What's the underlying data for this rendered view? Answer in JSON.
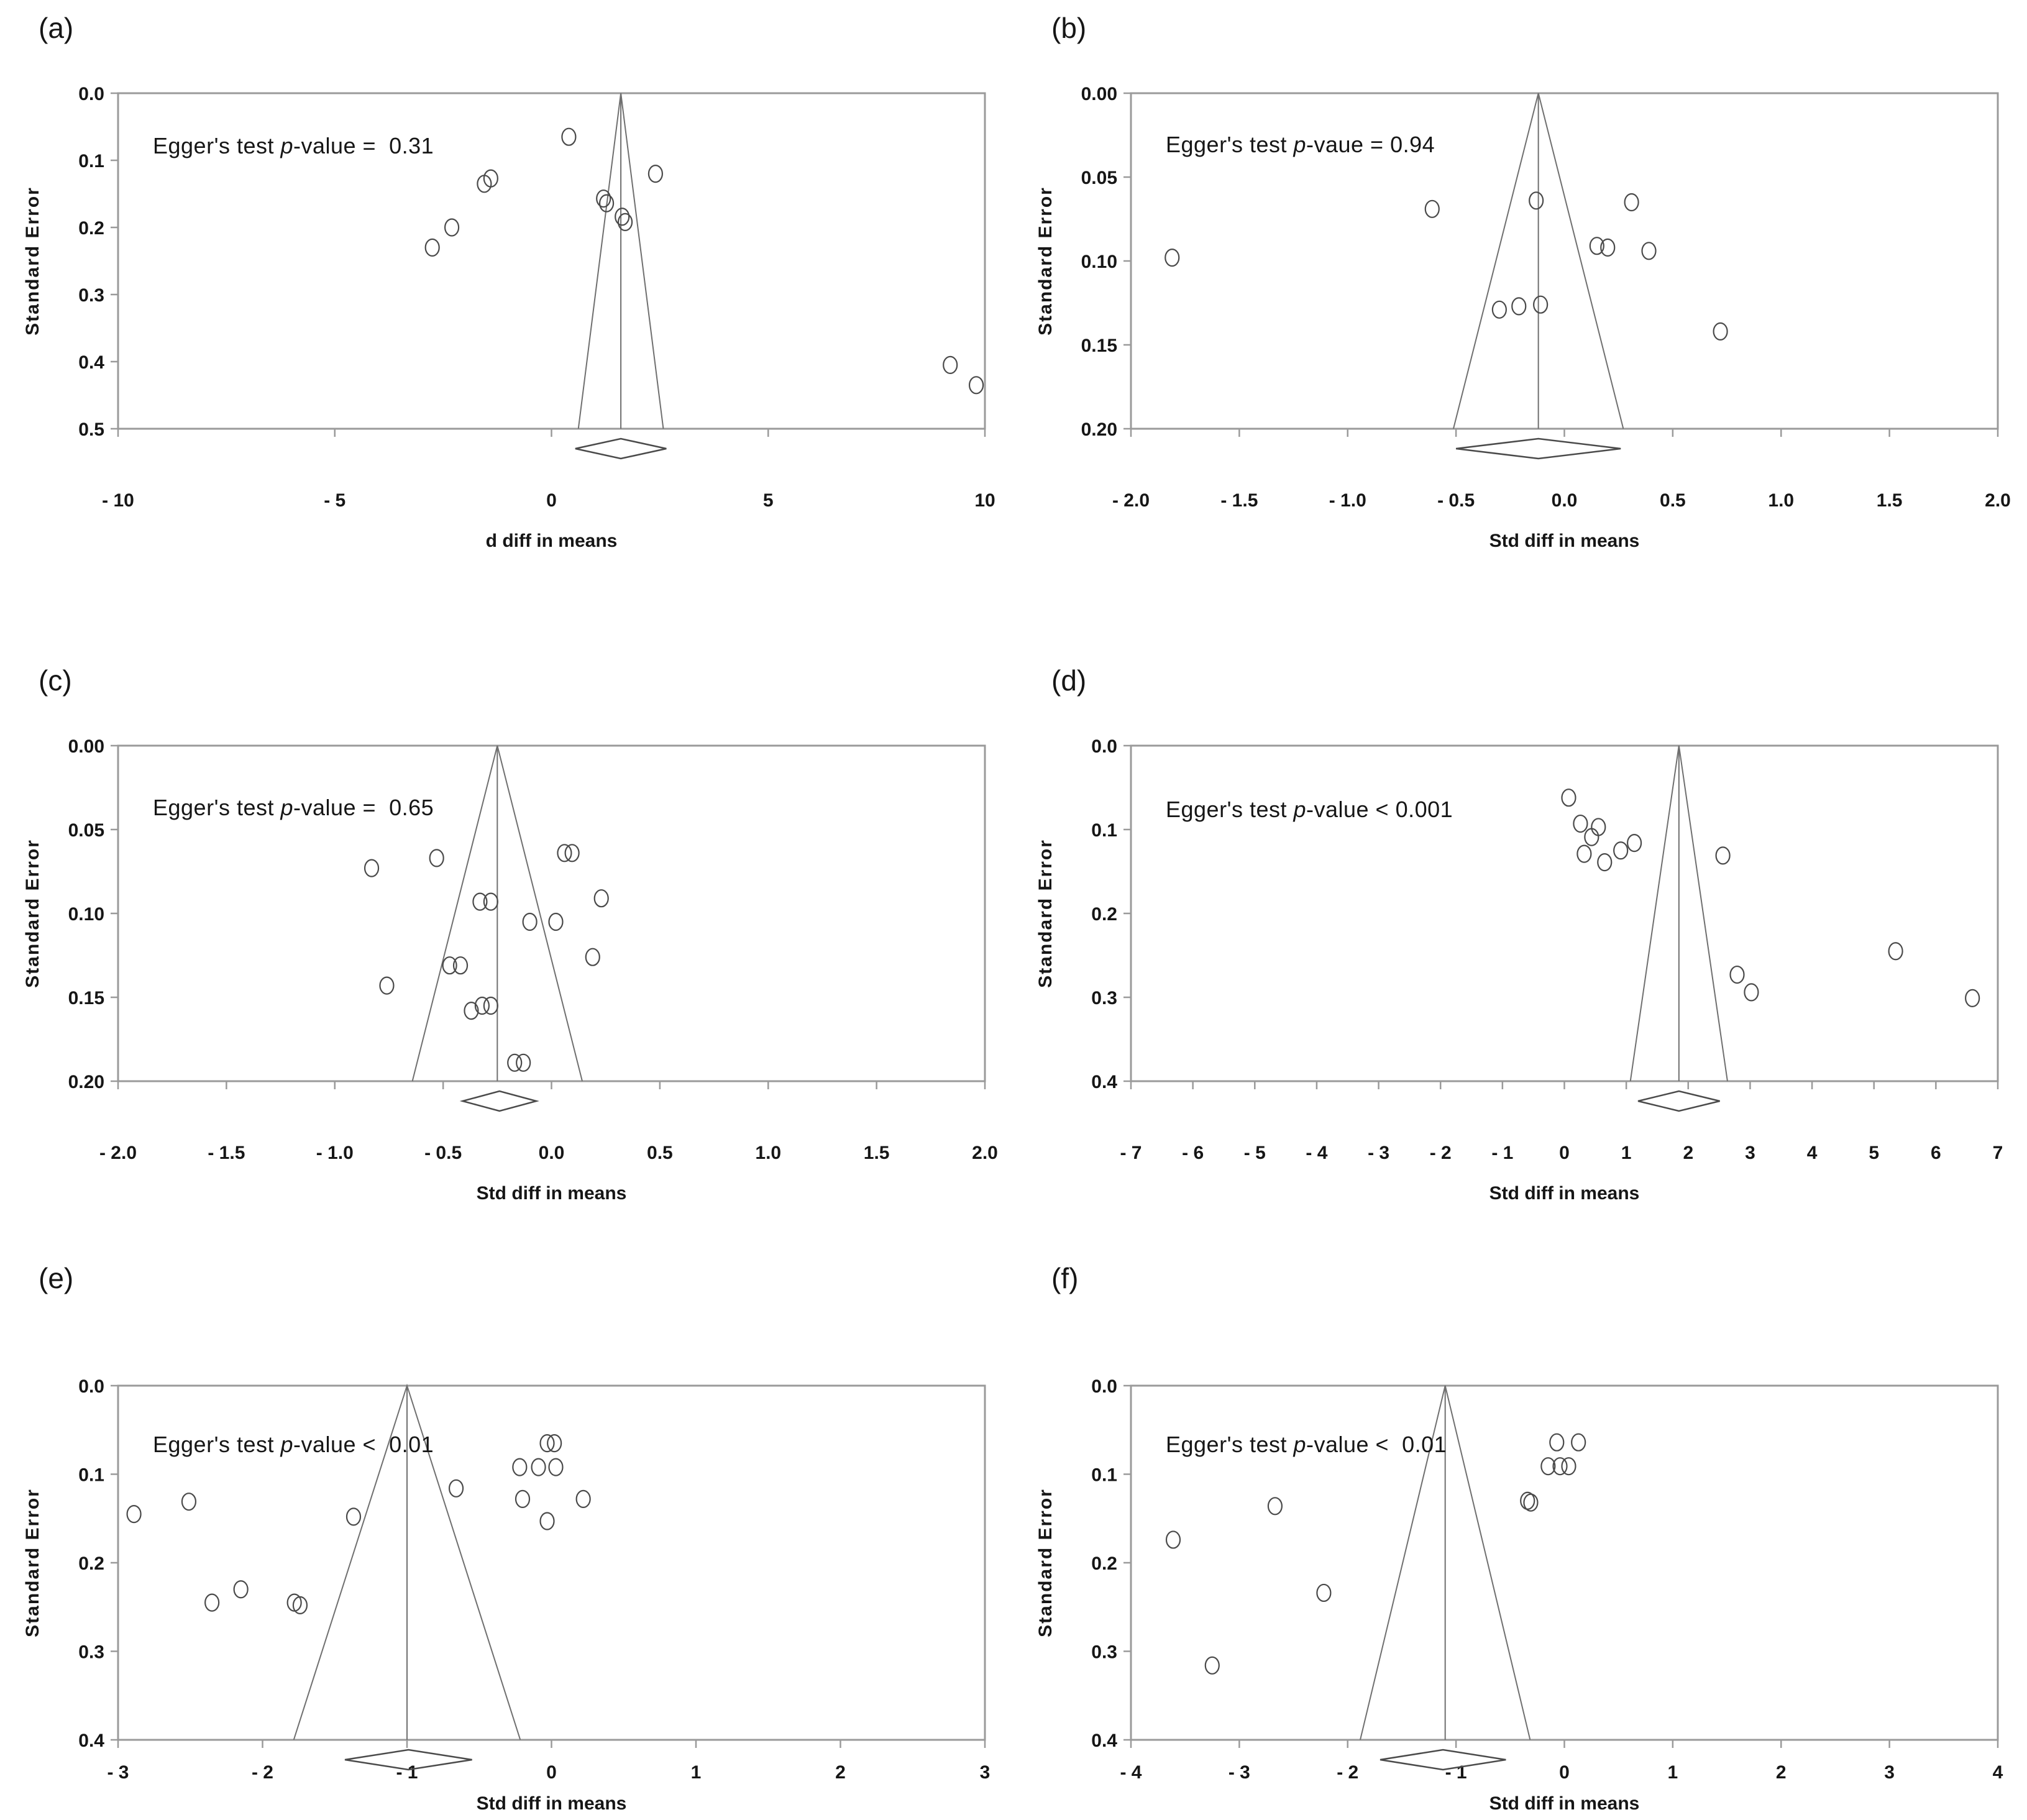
{
  "figure": {
    "background": "#ffffff",
    "frame_color": "#9a9a9a",
    "funnel_color": "#6f6f6f",
    "point_color": "#4a4a4a",
    "text_color": "#161616"
  },
  "chart_data": [
    {
      "type": "scatter",
      "panel_label": "(a)",
      "egger": {
        "prefix": "Egger's test ",
        "p": "p",
        "suffix": "-value =  0.31"
      },
      "xlabel": "d diff in means",
      "ylabel": "Standard Error",
      "xlim": [
        -10,
        10
      ],
      "ylim": [
        0,
        0.5
      ],
      "xticks": [
        {
          "v": -10,
          "label": "- 10"
        },
        {
          "v": -5,
          "label": "- 5"
        },
        {
          "v": 0,
          "label": "0"
        },
        {
          "v": 5,
          "label": "5"
        },
        {
          "v": 10,
          "label": "10"
        }
      ],
      "yticks": [
        {
          "v": 0.0,
          "label": "0.0"
        },
        {
          "v": 0.1,
          "label": "0.1"
        },
        {
          "v": 0.2,
          "label": "0.2"
        },
        {
          "v": 0.3,
          "label": "0.3"
        },
        {
          "v": 0.4,
          "label": "0.4"
        },
        {
          "v": 0.5,
          "label": "0.5"
        }
      ],
      "funnel": {
        "center": 1.6,
        "z": 1.96
      },
      "diamond": {
        "center": 1.6,
        "half_width": 1.05
      },
      "points": [
        [
          0.4,
          0.065
        ],
        [
          2.4,
          0.12
        ],
        [
          -1.4,
          0.127
        ],
        [
          -1.55,
          0.135
        ],
        [
          1.2,
          0.157
        ],
        [
          1.27,
          0.164
        ],
        [
          1.63,
          0.184
        ],
        [
          1.7,
          0.192
        ],
        [
          -2.3,
          0.2
        ],
        [
          -2.75,
          0.23
        ],
        [
          9.2,
          0.405
        ],
        [
          9.8,
          0.435
        ]
      ]
    },
    {
      "type": "scatter",
      "panel_label": "(b)",
      "egger": {
        "prefix": "Egger's test ",
        "p": "p",
        "suffix": "-vaue = 0.94"
      },
      "xlabel": "Std diff in means",
      "ylabel": "Standard Error",
      "xlim": [
        -2,
        2
      ],
      "ylim": [
        0,
        0.2
      ],
      "xticks": [
        {
          "v": -2.0,
          "label": "- 2.0"
        },
        {
          "v": -1.5,
          "label": "- 1.5"
        },
        {
          "v": -1.0,
          "label": "- 1.0"
        },
        {
          "v": -0.5,
          "label": "- 0.5"
        },
        {
          "v": 0.0,
          "label": "0.0"
        },
        {
          "v": 0.5,
          "label": "0.5"
        },
        {
          "v": 1.0,
          "label": "1.0"
        },
        {
          "v": 1.5,
          "label": "1.5"
        },
        {
          "v": 2.0,
          "label": "2.0"
        }
      ],
      "yticks": [
        {
          "v": 0.0,
          "label": "0.00"
        },
        {
          "v": 0.05,
          "label": "0.05"
        },
        {
          "v": 0.1,
          "label": "0.10"
        },
        {
          "v": 0.15,
          "label": "0.15"
        },
        {
          "v": 0.2,
          "label": "0.20"
        }
      ],
      "funnel": {
        "center": -0.12,
        "z": 1.96
      },
      "diamond": {
        "center": -0.12,
        "half_width": 0.38
      },
      "points": [
        [
          -0.13,
          0.064
        ],
        [
          0.31,
          0.065
        ],
        [
          -0.61,
          0.069
        ],
        [
          0.15,
          0.091
        ],
        [
          0.2,
          0.092
        ],
        [
          0.39,
          0.094
        ],
        [
          -1.81,
          0.098
        ],
        [
          -0.11,
          0.126
        ],
        [
          -0.21,
          0.127
        ],
        [
          -0.3,
          0.129
        ],
        [
          0.72,
          0.142
        ]
      ]
    },
    {
      "type": "scatter",
      "panel_label": "(c)",
      "egger": {
        "prefix": "Egger's test ",
        "p": "p",
        "suffix": "-value =  0.65"
      },
      "xlabel": "Std diff in means",
      "ylabel": "Standard Error",
      "xlim": [
        -2,
        2
      ],
      "ylim": [
        0,
        0.2
      ],
      "xticks": [
        {
          "v": -2.0,
          "label": "- 2.0"
        },
        {
          "v": -1.5,
          "label": "- 1.5"
        },
        {
          "v": -1.0,
          "label": "- 1.0"
        },
        {
          "v": -0.5,
          "label": "- 0.5"
        },
        {
          "v": 0.0,
          "label": "0.0"
        },
        {
          "v": 0.5,
          "label": "0.5"
        },
        {
          "v": 1.0,
          "label": "1.0"
        },
        {
          "v": 1.5,
          "label": "1.5"
        },
        {
          "v": 2.0,
          "label": "2.0"
        }
      ],
      "yticks": [
        {
          "v": 0.0,
          "label": "0.00"
        },
        {
          "v": 0.05,
          "label": "0.05"
        },
        {
          "v": 0.1,
          "label": "0.10"
        },
        {
          "v": 0.15,
          "label": "0.15"
        },
        {
          "v": 0.2,
          "label": "0.20"
        }
      ],
      "funnel": {
        "center": -0.25,
        "z": 1.96
      },
      "diamond": {
        "center": -0.24,
        "half_width": 0.17
      },
      "points": [
        [
          0.06,
          0.064
        ],
        [
          0.095,
          0.064
        ],
        [
          -0.53,
          0.067
        ],
        [
          -0.83,
          0.073
        ],
        [
          0.23,
          0.091
        ],
        [
          -0.33,
          0.093
        ],
        [
          -0.28,
          0.093
        ],
        [
          -0.1,
          0.105
        ],
        [
          0.02,
          0.105
        ],
        [
          0.19,
          0.126
        ],
        [
          -0.47,
          0.131
        ],
        [
          -0.42,
          0.131
        ],
        [
          -0.76,
          0.143
        ],
        [
          -0.32,
          0.155
        ],
        [
          -0.28,
          0.155
        ],
        [
          -0.37,
          0.158
        ],
        [
          -0.17,
          0.189
        ],
        [
          -0.13,
          0.189
        ]
      ]
    },
    {
      "type": "scatter",
      "panel_label": "(d)",
      "egger": {
        "prefix": "Egger's test ",
        "p": "p",
        "suffix": "-value < 0.001"
      },
      "xlabel": "Std diff in means",
      "ylabel": "Standard Error",
      "xlim": [
        -7,
        7
      ],
      "ylim": [
        0,
        0.4
      ],
      "xticks": [
        {
          "v": -7,
          "label": "- 7"
        },
        {
          "v": -6,
          "label": "- 6"
        },
        {
          "v": -5,
          "label": "- 5"
        },
        {
          "v": -4,
          "label": "- 4"
        },
        {
          "v": -3,
          "label": "- 3"
        },
        {
          "v": -2,
          "label": "- 2"
        },
        {
          "v": -1,
          "label": "- 1"
        },
        {
          "v": 0,
          "label": "0"
        },
        {
          "v": 1,
          "label": "1"
        },
        {
          "v": 2,
          "label": "2"
        },
        {
          "v": 3,
          "label": "3"
        },
        {
          "v": 4,
          "label": "4"
        },
        {
          "v": 5,
          "label": "5"
        },
        {
          "v": 6,
          "label": "6"
        },
        {
          "v": 7,
          "label": "7"
        }
      ],
      "yticks": [
        {
          "v": 0.0,
          "label": "0.0"
        },
        {
          "v": 0.1,
          "label": "0.1"
        },
        {
          "v": 0.2,
          "label": "0.2"
        },
        {
          "v": 0.3,
          "label": "0.3"
        },
        {
          "v": 0.4,
          "label": "0.4"
        }
      ],
      "funnel": {
        "center": 1.85,
        "z": 1.96
      },
      "diamond": {
        "center": 1.85,
        "half_width": 0.66
      },
      "points": [
        [
          0.07,
          0.062
        ],
        [
          0.26,
          0.093
        ],
        [
          0.55,
          0.097
        ],
        [
          0.44,
          0.109
        ],
        [
          1.13,
          0.116
        ],
        [
          0.91,
          0.125
        ],
        [
          0.32,
          0.129
        ],
        [
          2.56,
          0.131
        ],
        [
          0.65,
          0.139
        ],
        [
          5.35,
          0.245
        ],
        [
          2.79,
          0.273
        ],
        [
          3.02,
          0.294
        ],
        [
          6.59,
          0.301
        ]
      ]
    },
    {
      "type": "scatter",
      "panel_label": "(e)",
      "egger": {
        "prefix": "Egger's test ",
        "p": "p",
        "suffix": "-value <  0.01"
      },
      "xlabel": "Std diff in means",
      "ylabel": "Standard Error",
      "xlim": [
        -3,
        3
      ],
      "ylim": [
        0,
        0.4
      ],
      "xticks": [
        {
          "v": -3,
          "label": "- 3"
        },
        {
          "v": -2,
          "label": "- 2"
        },
        {
          "v": -1,
          "label": "- 1"
        },
        {
          "v": 0,
          "label": "0"
        },
        {
          "v": 1,
          "label": "1"
        },
        {
          "v": 2,
          "label": "2"
        },
        {
          "v": 3,
          "label": "3"
        }
      ],
      "yticks": [
        {
          "v": 0.0,
          "label": "0.0"
        },
        {
          "v": 0.1,
          "label": "0.1"
        },
        {
          "v": 0.2,
          "label": "0.2"
        },
        {
          "v": 0.3,
          "label": "0.3"
        },
        {
          "v": 0.4,
          "label": "0.4"
        }
      ],
      "funnel": {
        "center": -1.0,
        "z": 1.96
      },
      "diamond": {
        "center": -0.99,
        "half_width": 0.44
      },
      "points": [
        [
          -0.03,
          0.065
        ],
        [
          0.02,
          0.065
        ],
        [
          -0.22,
          0.092
        ],
        [
          -0.09,
          0.092
        ],
        [
          0.03,
          0.092
        ],
        [
          -0.66,
          0.116
        ],
        [
          -0.2,
          0.128
        ],
        [
          0.22,
          0.128
        ],
        [
          -2.51,
          0.131
        ],
        [
          -2.89,
          0.145
        ],
        [
          -1.37,
          0.148
        ],
        [
          -0.03,
          0.153
        ],
        [
          -2.15,
          0.23
        ],
        [
          -2.35,
          0.245
        ],
        [
          -1.78,
          0.245
        ],
        [
          -1.74,
          0.248
        ]
      ]
    },
    {
      "type": "scatter",
      "panel_label": "(f)",
      "egger": {
        "prefix": "Egger's test ",
        "p": "p",
        "suffix": "-value <  0.01"
      },
      "xlabel": "Std diff in means",
      "ylabel": "Standard Error",
      "xlim": [
        -4,
        4
      ],
      "ylim": [
        0,
        0.4
      ],
      "xticks": [
        {
          "v": -4,
          "label": "- 4"
        },
        {
          "v": -3,
          "label": "- 3"
        },
        {
          "v": -2,
          "label": "- 2"
        },
        {
          "v": -1,
          "label": "- 1"
        },
        {
          "v": 0,
          "label": "0"
        },
        {
          "v": 1,
          "label": "1"
        },
        {
          "v": 2,
          "label": "2"
        },
        {
          "v": 3,
          "label": "3"
        },
        {
          "v": 4,
          "label": "4"
        }
      ],
      "yticks": [
        {
          "v": 0.0,
          "label": "0.0"
        },
        {
          "v": 0.1,
          "label": "0.1"
        },
        {
          "v": 0.2,
          "label": "0.2"
        },
        {
          "v": 0.3,
          "label": "0.3"
        },
        {
          "v": 0.4,
          "label": "0.4"
        }
      ],
      "funnel": {
        "center": -1.1,
        "z": 1.96
      },
      "diamond": {
        "center": -1.12,
        "half_width": 0.58
      },
      "points": [
        [
          -0.07,
          0.064
        ],
        [
          0.13,
          0.064
        ],
        [
          -0.15,
          0.091
        ],
        [
          -0.04,
          0.091
        ],
        [
          0.04,
          0.091
        ],
        [
          -0.34,
          0.13
        ],
        [
          -0.31,
          0.132
        ],
        [
          -2.67,
          0.136
        ],
        [
          -3.61,
          0.174
        ],
        [
          -2.22,
          0.234
        ],
        [
          -3.25,
          0.316
        ]
      ]
    }
  ]
}
